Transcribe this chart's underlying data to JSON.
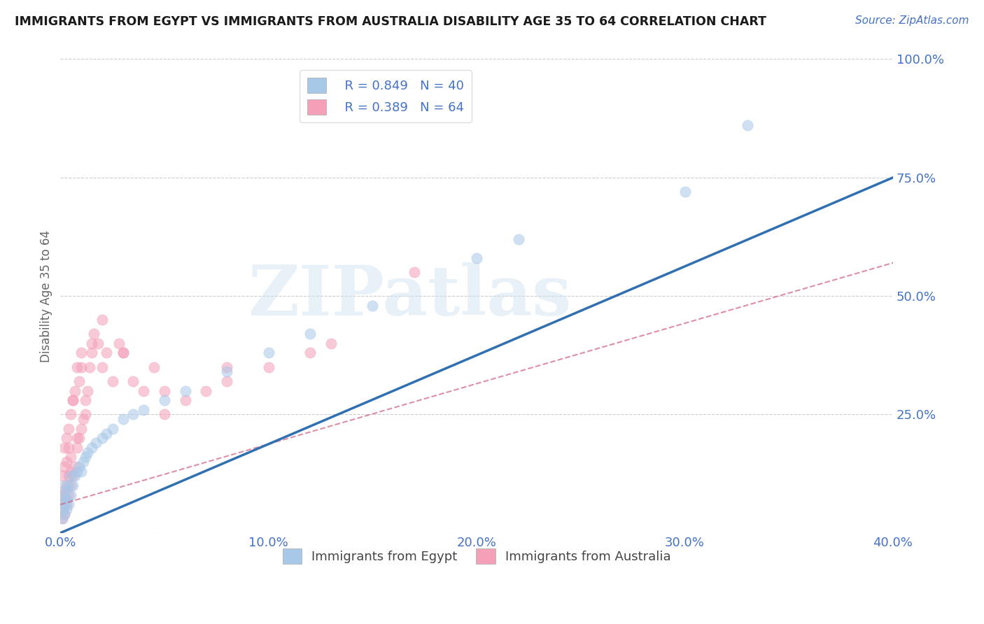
{
  "title": "IMMIGRANTS FROM EGYPT VS IMMIGRANTS FROM AUSTRALIA DISABILITY AGE 35 TO 64 CORRELATION CHART",
  "source": "Source: ZipAtlas.com",
  "ylabel": "Disability Age 35 to 64",
  "xlim": [
    0.0,
    0.4
  ],
  "ylim": [
    0.0,
    1.0
  ],
  "xticks": [
    0.0,
    0.1,
    0.2,
    0.3,
    0.4
  ],
  "xtick_labels": [
    "0.0%",
    "10.0%",
    "20.0%",
    "30.0%",
    "40.0%"
  ],
  "yticks": [
    0.0,
    0.25,
    0.5,
    0.75,
    1.0
  ],
  "ytick_labels": [
    "",
    "25.0%",
    "50.0%",
    "75.0%",
    "100.0%"
  ],
  "legend_r1": "R = 0.849",
  "legend_n1": "N = 40",
  "legend_r2": "R = 0.389",
  "legend_n2": "N = 64",
  "color_egypt": "#a8c8e8",
  "color_australia": "#f4a0b8",
  "color_line_egypt": "#3070b0",
  "color_line_australia": "#d06080",
  "color_axis": "#4472c4",
  "watermark": "ZIPatlas",
  "background_color": "#ffffff",
  "egypt_x": [
    0.001,
    0.001,
    0.001,
    0.002,
    0.002,
    0.002,
    0.002,
    0.003,
    0.003,
    0.003,
    0.004,
    0.004,
    0.005,
    0.005,
    0.006,
    0.007,
    0.008,
    0.009,
    0.01,
    0.011,
    0.012,
    0.013,
    0.015,
    0.017,
    0.02,
    0.022,
    0.025,
    0.03,
    0.035,
    0.04,
    0.05,
    0.06,
    0.08,
    0.1,
    0.12,
    0.15,
    0.2,
    0.22,
    0.3,
    0.33
  ],
  "egypt_y": [
    0.03,
    0.05,
    0.07,
    0.04,
    0.06,
    0.08,
    0.1,
    0.05,
    0.07,
    0.09,
    0.06,
    0.1,
    0.08,
    0.12,
    0.1,
    0.12,
    0.13,
    0.14,
    0.13,
    0.15,
    0.16,
    0.17,
    0.18,
    0.19,
    0.2,
    0.21,
    0.22,
    0.24,
    0.25,
    0.26,
    0.28,
    0.3,
    0.34,
    0.38,
    0.42,
    0.48,
    0.58,
    0.62,
    0.72,
    0.86
  ],
  "australia_x": [
    0.001,
    0.001,
    0.001,
    0.001,
    0.002,
    0.002,
    0.002,
    0.002,
    0.002,
    0.003,
    0.003,
    0.003,
    0.003,
    0.004,
    0.004,
    0.004,
    0.005,
    0.005,
    0.005,
    0.006,
    0.006,
    0.007,
    0.007,
    0.008,
    0.008,
    0.009,
    0.009,
    0.01,
    0.01,
    0.011,
    0.012,
    0.013,
    0.014,
    0.015,
    0.016,
    0.018,
    0.02,
    0.022,
    0.025,
    0.028,
    0.03,
    0.035,
    0.04,
    0.045,
    0.05,
    0.06,
    0.07,
    0.08,
    0.1,
    0.12,
    0.004,
    0.006,
    0.01,
    0.015,
    0.02,
    0.03,
    0.05,
    0.08,
    0.13,
    0.17,
    0.003,
    0.005,
    0.008,
    0.012
  ],
  "australia_y": [
    0.03,
    0.05,
    0.08,
    0.12,
    0.04,
    0.07,
    0.09,
    0.14,
    0.18,
    0.06,
    0.1,
    0.15,
    0.2,
    0.08,
    0.12,
    0.22,
    0.1,
    0.16,
    0.25,
    0.12,
    0.28,
    0.14,
    0.3,
    0.18,
    0.35,
    0.2,
    0.32,
    0.22,
    0.38,
    0.24,
    0.28,
    0.3,
    0.35,
    0.38,
    0.42,
    0.4,
    0.35,
    0.38,
    0.32,
    0.4,
    0.38,
    0.32,
    0.3,
    0.35,
    0.25,
    0.28,
    0.3,
    0.32,
    0.35,
    0.38,
    0.18,
    0.28,
    0.35,
    0.4,
    0.45,
    0.38,
    0.3,
    0.35,
    0.4,
    0.55,
    0.07,
    0.13,
    0.2,
    0.25
  ]
}
